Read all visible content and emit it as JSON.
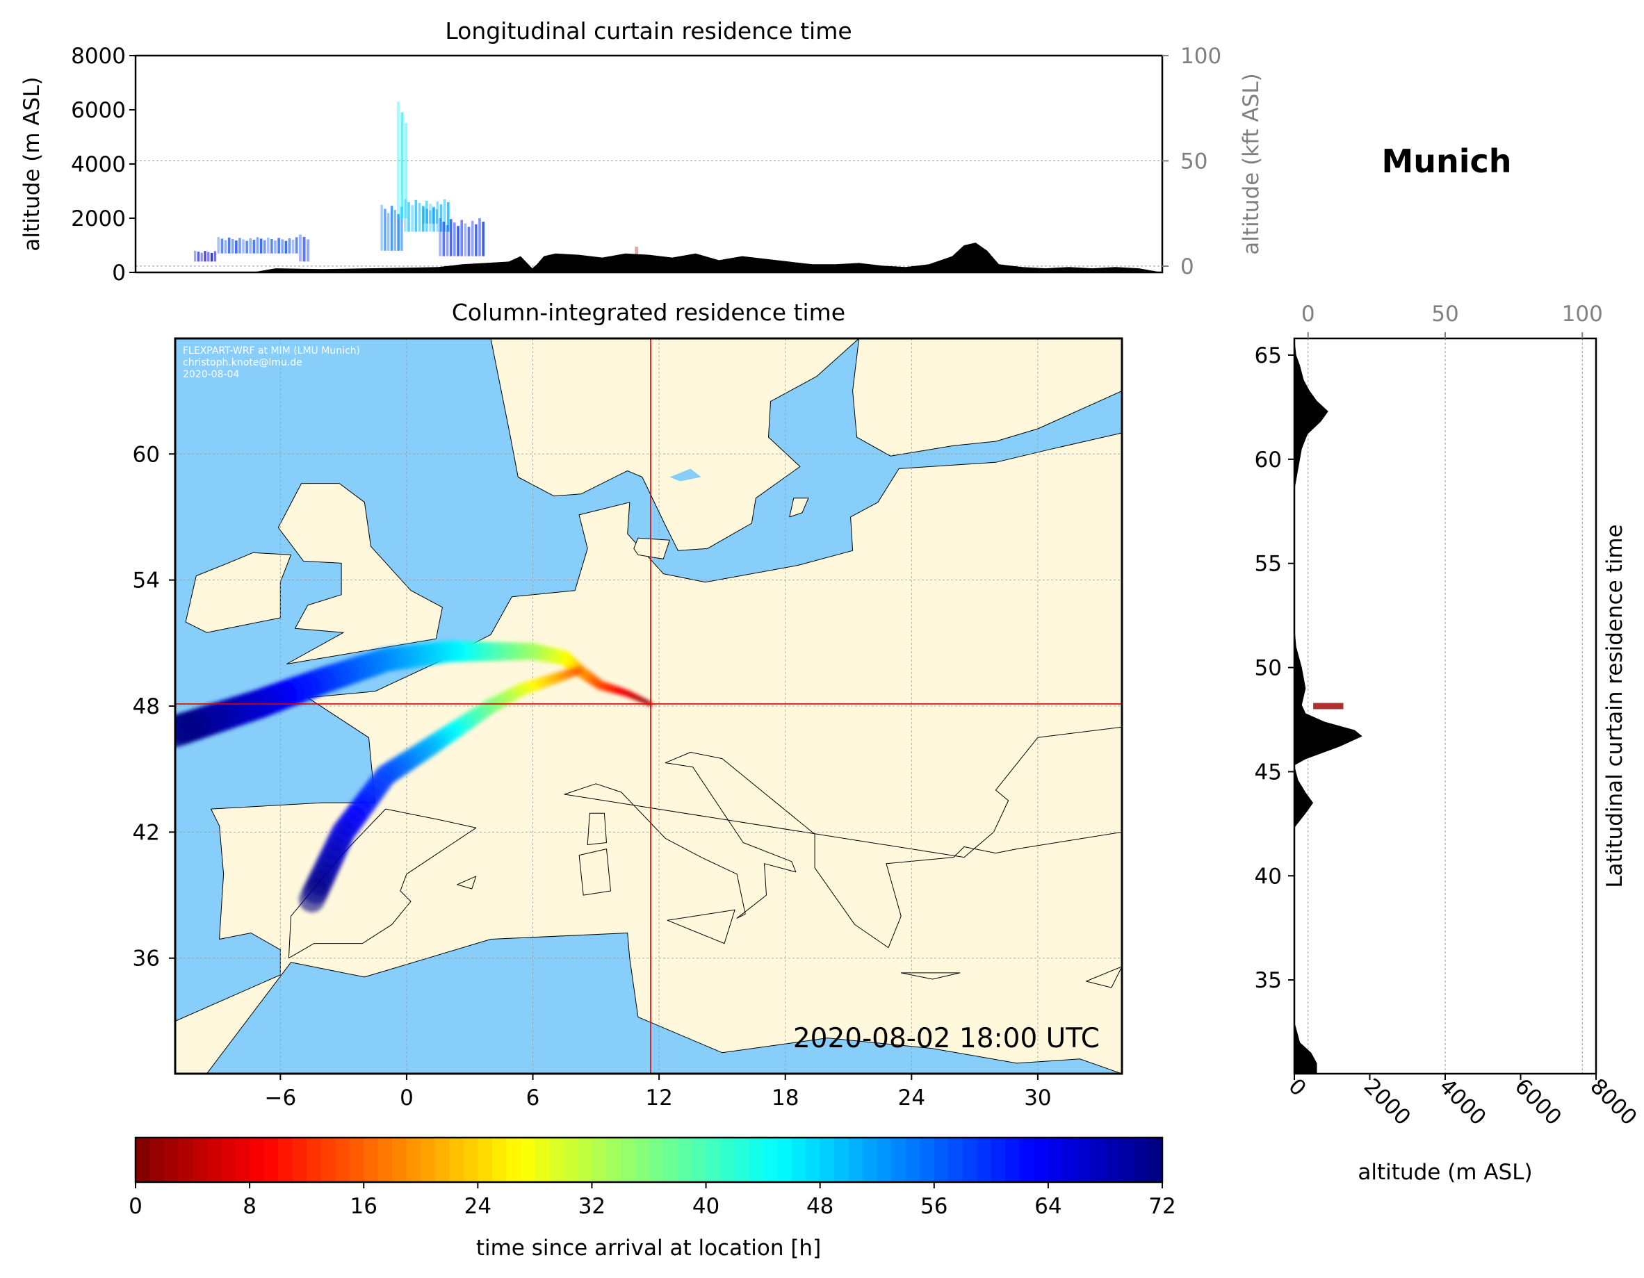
{
  "figure": {
    "location_title": "Munich",
    "credit_lines": [
      "FLEXPART-WRF at MIM (LMU Munich)",
      "christoph.knote@lmu.de",
      "2020-08-04"
    ],
    "timestamp": "2020-08-02 18:00 UTC"
  },
  "colors": {
    "ocean": "#87CEFA",
    "land": "#FFF8DC",
    "terrain": "#000000",
    "crosshair": "#DD0000",
    "gridline": "#999999",
    "colormap": [
      "#800000",
      "#FF0000",
      "#FF8000",
      "#FFFF00",
      "#80FF80",
      "#00FFFF",
      "#0080FF",
      "#0000FF",
      "#000080"
    ]
  },
  "chart_data": [
    {
      "id": "longitudinal_curtain",
      "type": "area",
      "title": "Longitudinal curtain residence time",
      "ylabel": "altitude (m ASL)",
      "ylabel_right": "altitude (kft ASL)",
      "ylim": [
        0,
        8000
      ],
      "yticks": [
        "0",
        "2000",
        "4000",
        "6000",
        "8000"
      ],
      "ylim_right": [
        -3,
        100
      ],
      "yticks_right": [
        "0",
        "50",
        "100"
      ],
      "xlim": [
        -10,
        34
      ],
      "grid": true,
      "terrain": {
        "x": [
          -10,
          -5,
          -4,
          -2,
          0,
          2,
          3,
          4,
          5,
          6,
          6.5,
          7,
          7.2,
          7.5,
          8,
          9,
          10,
          11,
          12,
          13,
          14,
          15,
          16,
          17,
          18,
          19,
          20,
          21,
          22,
          23,
          24,
          25,
          25.5,
          26,
          26.5,
          27,
          28,
          29,
          30,
          31,
          32,
          33,
          34
        ],
        "altitude": [
          0,
          0,
          150,
          120,
          150,
          180,
          200,
          300,
          350,
          400,
          600,
          150,
          300,
          600,
          700,
          650,
          550,
          700,
          650,
          550,
          700,
          450,
          600,
          500,
          400,
          300,
          300,
          350,
          250,
          200,
          300,
          600,
          1000,
          1100,
          800,
          300,
          200,
          150,
          200,
          150,
          200,
          150,
          0
        ]
      },
      "residence_patches": [
        {
          "x_range": [
            -7.5,
            -6.5
          ],
          "alt_range": [
            400,
            800
          ],
          "age_h": 66
        },
        {
          "x_range": [
            -6.5,
            -3
          ],
          "alt_range": [
            700,
            1300
          ],
          "age_h": 58
        },
        {
          "x_range": [
            -3,
            -2.5
          ],
          "alt_range": [
            400,
            1400
          ],
          "age_h": 60
        },
        {
          "x_range": [
            0.5,
            1.5
          ],
          "alt_range": [
            800,
            2500
          ],
          "age_h": 55
        },
        {
          "x_range": [
            1.2,
            1.7
          ],
          "alt_range": [
            2000,
            6300
          ],
          "age_h": 46
        },
        {
          "x_range": [
            1.5,
            3.5
          ],
          "alt_range": [
            1500,
            2700
          ],
          "age_h": 50
        },
        {
          "x_range": [
            2.3,
            3.0
          ],
          "alt_range": [
            1800,
            2400
          ],
          "age_h": 52
        },
        {
          "x_range": [
            3.0,
            5.0
          ],
          "alt_range": [
            600,
            2000
          ],
          "age_h": 60
        },
        {
          "x_range": [
            11.4,
            11.6
          ],
          "alt_range": [
            600,
            950
          ],
          "age_h": 3
        }
      ]
    },
    {
      "id": "column_integrated",
      "type": "heatmap",
      "title": "Column-integrated residence time",
      "xlim": [
        -11,
        34
      ],
      "ylim": [
        30.5,
        65.5
      ],
      "xticks": [
        "−6",
        "0",
        "6",
        "12",
        "18",
        "24",
        "30"
      ],
      "yticks": [
        "36",
        "42",
        "48",
        "54",
        "60"
      ],
      "grid": true,
      "release_point": {
        "lon": 11.6,
        "lat": 48.1
      },
      "plume_tracks": [
        {
          "age_h": [
            0,
            72
          ],
          "lon": [
            11.6,
            10.5,
            9.2,
            8.2,
            7.5,
            6.0,
            4.0,
            2.0,
            -1.0,
            -4.0,
            -7.0,
            -11.0
          ],
          "lat": [
            48.1,
            48.6,
            49.0,
            49.7,
            50.3,
            50.6,
            50.6,
            50.6,
            50.2,
            49.2,
            48.1,
            46.8
          ]
        },
        {
          "age_h": [
            14,
            72
          ],
          "lon": [
            8.2,
            7.0,
            5.5,
            4.0,
            2.5,
            1.0,
            -1.0,
            -3.0,
            -4.5
          ],
          "lat": [
            49.7,
            49.3,
            48.8,
            48.0,
            47.0,
            46.0,
            44.7,
            42.0,
            38.8
          ]
        }
      ],
      "map_labels": {
        "credit": "FLEXPART-WRF at MIM (LMU Munich)"
      }
    },
    {
      "id": "latitudinal_curtain",
      "type": "area",
      "title": "Latitudinal curtain residence time",
      "xlabel": "altitude (m ASL)",
      "xlim": [
        0,
        8000
      ],
      "xticks": [
        "0",
        "2000",
        "4000",
        "6000",
        "8000"
      ],
      "xlim_top": [
        -5,
        105
      ],
      "xticks_top": [
        "0",
        "50",
        "100"
      ],
      "ylim": [
        30.5,
        65.8
      ],
      "yticks": [
        "35",
        "40",
        "45",
        "50",
        "55",
        "60",
        "65"
      ],
      "grid": true,
      "terrain": {
        "lat": [
          30.5,
          31.0,
          31.5,
          32.0,
          33,
          35,
          40,
          42.3,
          43.0,
          43.5,
          44.0,
          44.6,
          45.3,
          45.6,
          46.2,
          46.7,
          47.0,
          47.4,
          47.8,
          48.2,
          49.0,
          50.0,
          51.0,
          52.0,
          53.0,
          55.0,
          57.0,
          58.5,
          59.5,
          60.5,
          61.2,
          61.8,
          62.3,
          62.8,
          63.3,
          63.8,
          64.5,
          65.0,
          65.8
        ],
        "altitude": [
          600,
          600,
          450,
          150,
          0,
          0,
          0,
          0,
          300,
          500,
          300,
          100,
          0,
          300,
          1200,
          1800,
          1600,
          800,
          300,
          200,
          300,
          200,
          50,
          0,
          0,
          0,
          0,
          0,
          100,
          200,
          350,
          700,
          900,
          600,
          400,
          250,
          150,
          50,
          0
        ]
      },
      "residence_patches": [
        {
          "lat_range": [
            48.0,
            48.3
          ],
          "alt_range": [
            500,
            1300
          ],
          "age_h": 2
        }
      ]
    },
    {
      "id": "colorbar",
      "type": "heatmap",
      "xlabel": "time since arrival at location [h]",
      "xlim": [
        0,
        72
      ],
      "xticks": [
        "0",
        "8",
        "16",
        "24",
        "32",
        "40",
        "48",
        "56",
        "64",
        "72"
      ],
      "colormap": "jet_r"
    }
  ]
}
